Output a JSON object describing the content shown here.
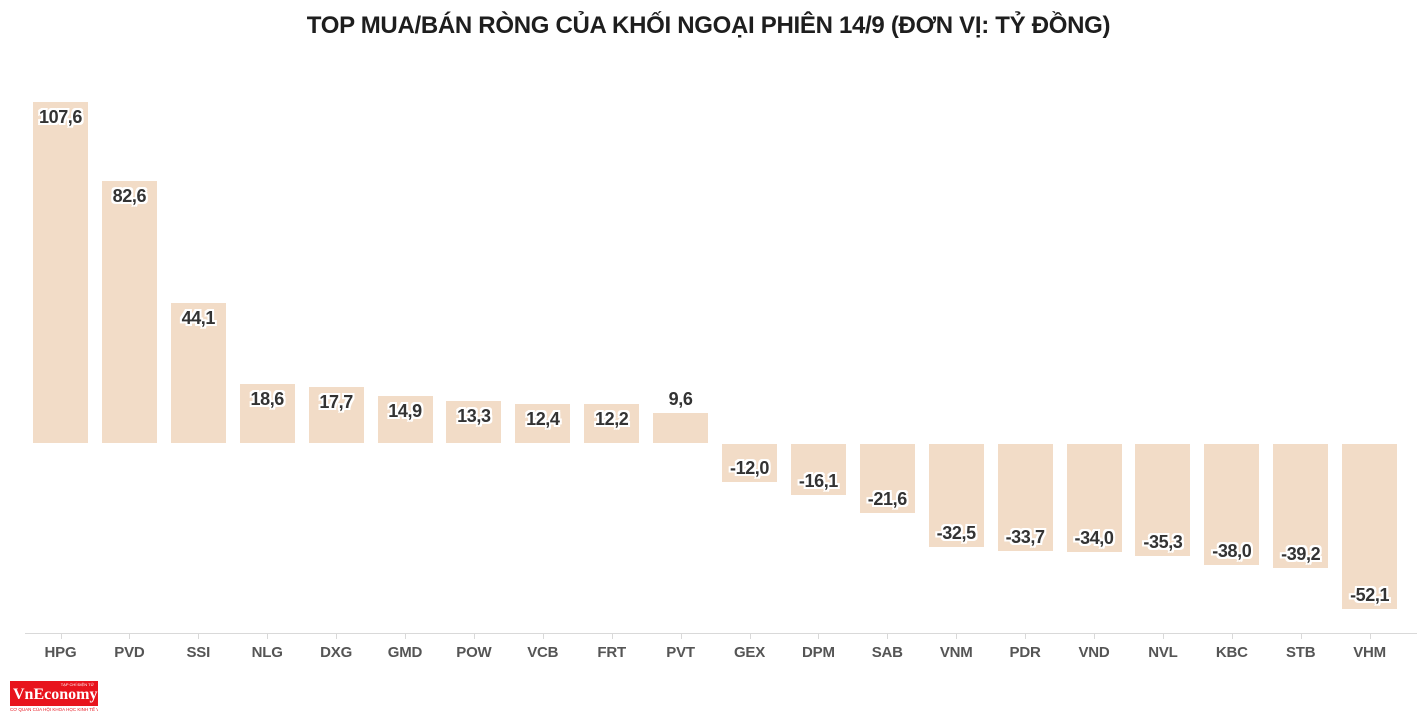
{
  "title": "TOP MUA/BÁN RÒNG CỦA KHỐI NGOẠI PHIÊN 14/9 (ĐƠN VỊ: TỶ ĐỒNG)",
  "chart_data": {
    "type": "bar",
    "title": "TOP MUA/BÁN RÒNG CỦA KHỐI NGOẠI PHIÊN 14/9 (ĐƠN VỊ: TỶ ĐỒNG)",
    "categories": [
      "HPG",
      "PVD",
      "SSI",
      "NLG",
      "DXG",
      "GMD",
      "POW",
      "VCB",
      "FRT",
      "PVT",
      "GEX",
      "DPM",
      "SAB",
      "VNM",
      "PDR",
      "VND",
      "NVL",
      "KBC",
      "STB",
      "VHM"
    ],
    "values": [
      107.6,
      82.6,
      44.1,
      18.6,
      17.7,
      14.9,
      13.3,
      12.4,
      12.2,
      9.6,
      -12.0,
      -16.1,
      -21.6,
      -32.5,
      -33.7,
      -34.0,
      -35.3,
      -38.0,
      -39.2,
      -52.1
    ],
    "value_labels": [
      "107,6",
      "82,6",
      "44,1",
      "18,6",
      "17,7",
      "14,9",
      "13,3",
      "12,4",
      "12,2",
      "9,6",
      "-12,0",
      "-16,1",
      "-21,6",
      "-32,5",
      "-33,7",
      "-34,0",
      "-35,3",
      "-38,0",
      "-39,2",
      "-52,1"
    ],
    "xlabel": "",
    "ylabel": "",
    "ylim": [
      -60,
      115
    ],
    "grid": false,
    "legend_position": "none",
    "bar_color": "#f2dcc7",
    "value_label_color": "#333333",
    "category_label_color": "#555555",
    "axis_color": "#d9d9d9",
    "title_color": "#1e1e1e"
  },
  "footer": {
    "logo": {
      "name": "VnEconomy",
      "top_text": "TẠP CHÍ ĐIỆN TỬ",
      "bottom_text": "CƠ QUAN CỦA HỘI KHOA HỌC KINH TẾ VIỆT NAM",
      "bg_color": "#e8141d"
    }
  }
}
